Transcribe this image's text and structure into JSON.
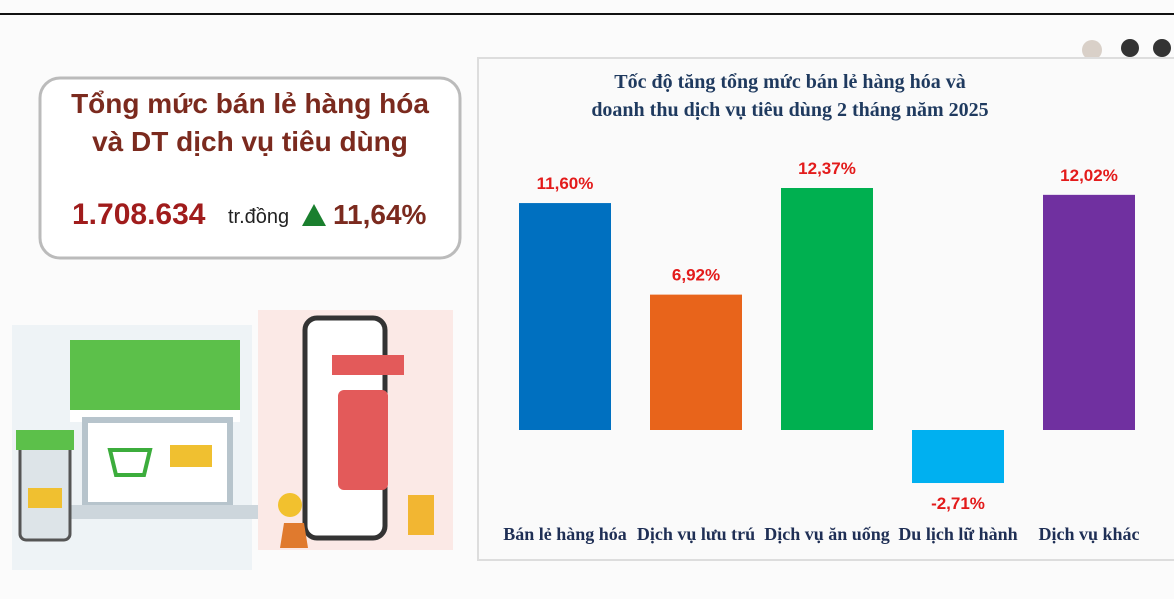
{
  "summary": {
    "title_lines": [
      "Tổng mức bán lẻ hàng hóa",
      "và DT dịch vụ tiêu dùng"
    ],
    "value": "1.708.634",
    "unit": "tr.đồng",
    "growth": "11,64%"
  },
  "chart_data": {
    "type": "bar",
    "title_lines": [
      "Tốc độ tăng tổng mức bán lẻ hàng hóa và",
      "doanh thu dịch vụ tiêu dùng 2 tháng năm 2025"
    ],
    "categories": [
      "Bán lẻ hàng hóa",
      "Dịch vụ lưu trú",
      "Dịch vụ ăn uống",
      "Du lịch lữ hành",
      "Dịch vụ khác"
    ],
    "values": [
      11.6,
      6.92,
      12.37,
      -2.71,
      12.02
    ],
    "value_labels": [
      "11,60%",
      "6,92%",
      "12,37%",
      "-2,71%",
      "12,02%"
    ],
    "colors": [
      "#0070c0",
      "#e8641b",
      "#00b050",
      "#00b0f0",
      "#7030a0"
    ]
  }
}
